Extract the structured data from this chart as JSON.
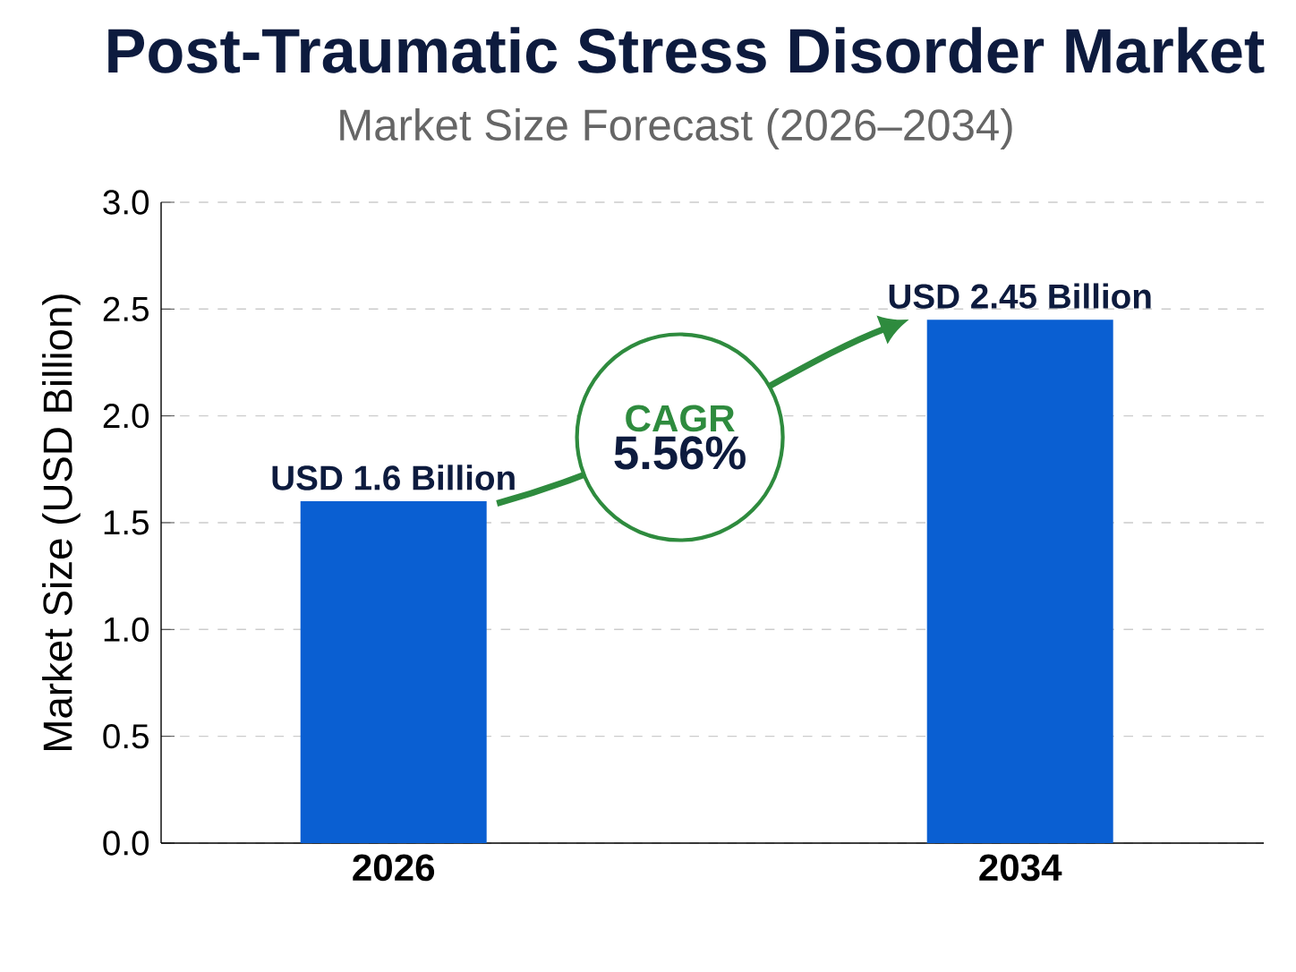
{
  "chart_data": {
    "type": "bar",
    "title": "Post-Traumatic Stress Disorder Market",
    "subtitle": "Market Size Forecast (2026–2034)",
    "ylabel": "Market Size (USD Billion)",
    "categories": [
      "2026",
      "2034"
    ],
    "values": [
      1.6,
      2.45
    ],
    "color": "#0a5fd2",
    "value_labels": [
      "USD 1.6 Billion",
      "USD 2.45 Billion"
    ],
    "ylim": [
      0,
      3
    ],
    "yticks": [
      {
        "value": 0,
        "label": "0.0"
      },
      {
        "value": 0.5,
        "label": "0.5"
      },
      {
        "value": 1,
        "label": "1.0"
      },
      {
        "value": 1.5,
        "label": "1.5"
      },
      {
        "value": 2,
        "label": "2.0"
      },
      {
        "value": 2.5,
        "label": "2.5"
      },
      {
        "value": 3,
        "label": "3.0"
      }
    ],
    "grid": "y",
    "annotations": [
      "CAGR",
      "5.56%"
    ]
  }
}
